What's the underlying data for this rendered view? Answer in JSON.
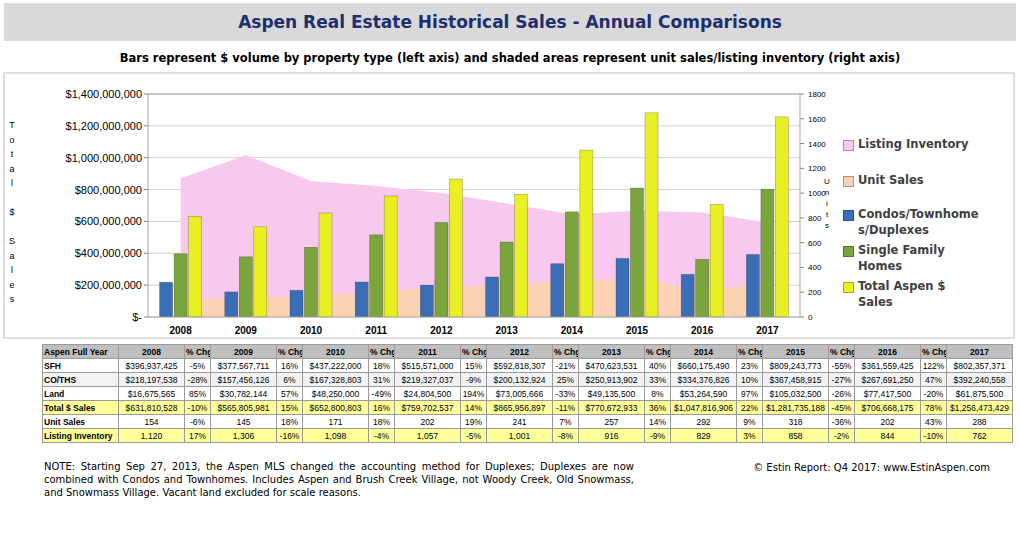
{
  "chart_data": {
    "type": "bar",
    "title": "Aspen Real Estate Historical Sales - Annual Comparisons",
    "subtitle": "Bars represent $ volume by property type (left axis) and shaded areas represent unit sales/listing inventory (right axis)",
    "ylabel": "Total $ Sales",
    "y2label": "Units",
    "categories": [
      "2008",
      "2009",
      "2010",
      "2011",
      "2012",
      "2013",
      "2014",
      "2015",
      "2016",
      "2017"
    ],
    "ylim": [
      0,
      1400000000
    ],
    "yticks": [
      {
        "value": 0,
        "label": "$-"
      },
      {
        "value": 200000000,
        "label": "$200,000,000"
      },
      {
        "value": 400000000,
        "label": "$400,000,000"
      },
      {
        "value": 600000000,
        "label": "$600,000,000"
      },
      {
        "value": 800000000,
        "label": "$800,000,000"
      },
      {
        "value": 1000000000,
        "label": "$1,000,000,000"
      },
      {
        "value": 1200000000,
        "label": "$1,200,000,000"
      },
      {
        "value": 1400000000,
        "label": "$1,400,000,000"
      }
    ],
    "y2lim": [
      0,
      1800
    ],
    "y2ticks": [
      0,
      200,
      400,
      600,
      800,
      1000,
      1200,
      1400,
      1600,
      1800
    ],
    "grid": true,
    "legend": "right",
    "series": [
      {
        "name": "Listing Inventory",
        "type": "area",
        "axis": "y2",
        "color": "#f8c8ef",
        "values": [
          1120,
          1306,
          1098,
          1057,
          1001,
          916,
          829,
          858,
          844,
          762
        ]
      },
      {
        "name": "Unit Sales",
        "type": "area",
        "axis": "y2",
        "color": "#fbd3b2",
        "values": [
          154,
          145,
          171,
          202,
          241,
          257,
          292,
          318,
          202,
          288
        ]
      },
      {
        "name": "Condos/Townhomes/Duplexes",
        "type": "bar",
        "color": "#3a6fb7",
        "values": [
          218197538,
          157456126,
          167328803,
          219327037,
          200132924,
          250913902,
          334376826,
          367458915,
          267691250,
          392240558
        ]
      },
      {
        "name": "Single Family Homes",
        "type": "bar",
        "color": "#79a53c",
        "values": [
          396937425,
          377567711,
          437222000,
          515571000,
          592818307,
          470623531,
          660175490,
          809243773,
          361559425,
          802357371
        ]
      },
      {
        "name": "Total Aspen $ Sales",
        "type": "bar",
        "color": "#e8f024",
        "values": [
          631810528,
          565805981,
          652800803,
          759702537,
          865956897,
          770672933,
          1047816906,
          1281735188,
          706668175,
          1256473429
        ]
      }
    ]
  },
  "table": {
    "columns": [
      "Aspen Full Year",
      "2008",
      "% Chg",
      "2009",
      "% Chg",
      "2010",
      "% Chg",
      "2011",
      "% Chg",
      "2012",
      "% Chg",
      "2013",
      "% Chg",
      "2014",
      "% Chg",
      "2015",
      "% Chg",
      "2016",
      "% Chg",
      "2017"
    ],
    "rows": [
      [
        "SFH",
        "$396,937,425",
        "-5%",
        "$377,567,711",
        "16%",
        "$437,222,000",
        "18%",
        "$515,571,000",
        "15%",
        "$592,818,307",
        "-21%",
        "$470,623,531",
        "40%",
        "$660,175,490",
        "23%",
        "$809,243,773",
        "-55%",
        "$361,559,425",
        "122%",
        "$802,357,371"
      ],
      [
        "CO/THS",
        "$218,197,538",
        "-28%",
        "$157,456,126",
        "6%",
        "$167,328,803",
        "31%",
        "$219,327,037",
        "-9%",
        "$200,132,924",
        "25%",
        "$250,913,902",
        "33%",
        "$334,376,826",
        "10%",
        "$367,458,915",
        "-27%",
        "$267,691,250",
        "47%",
        "$392,240,558"
      ],
      [
        "Land",
        "$16,675,565",
        "85%",
        "$30,782,144",
        "57%",
        "$48,250,000",
        "-49%",
        "$24,804,500",
        "194%",
        "$73,005,666",
        "-33%",
        "$49,135,500",
        "8%",
        "$53,264,590",
        "97%",
        "$105,032,500",
        "-26%",
        "$77,417,500",
        "-20%",
        "$61,875,500"
      ],
      [
        "Total $ Sales",
        "$631,810,528",
        "-10%",
        "$565,805,981",
        "15%",
        "$652,800,803",
        "16%",
        "$759,702,537",
        "14%",
        "$865,956,897",
        "-11%",
        "$770,672,933",
        "36%",
        "$1,047,816,906",
        "22%",
        "$1,281,735,188",
        "-45%",
        "$706,668,175",
        "78%",
        "$1,256,473,429"
      ],
      [
        "Unit Sales",
        "154",
        "-6%",
        "145",
        "18%",
        "171",
        "18%",
        "202",
        "19%",
        "241",
        "7%",
        "257",
        "14%",
        "292",
        "9%",
        "318",
        "-36%",
        "202",
        "43%",
        "288"
      ],
      [
        "Listing Inventory",
        "1,120",
        "17%",
        "1,306",
        "-16%",
        "1,098",
        "-4%",
        "1,057",
        "-5%",
        "1,001",
        "-8%",
        "916",
        "-9%",
        "829",
        "3%",
        "858",
        "-2%",
        "844",
        "-10%",
        "762"
      ]
    ]
  },
  "footer": {
    "note": "NOTE: Starting Sep 27, 2013, the Aspen MLS changed the accounting method for Duplexes; Duplexes are now combined with Condos and Townhomes. Includes Aspen and Brush Creek Village, not Woody Creek, Old Snowmass, and Snowmass Village. Vacant land excluded for scale reasons.",
    "credit": "© Estin Report: Q4 2017: www.EstinAspen.com"
  }
}
